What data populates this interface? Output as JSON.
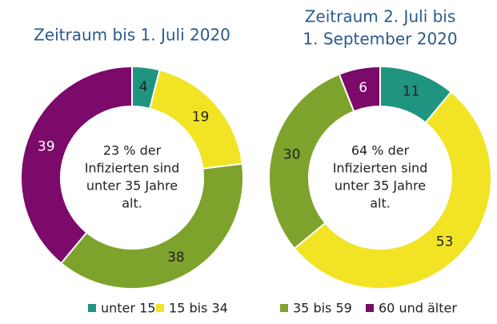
{
  "chart_data": [
    {
      "type": "donut",
      "title": [
        "Zeitraum bis 1. Juli 2020"
      ],
      "values": [
        4,
        19,
        38,
        39
      ],
      "center_text": [
        "23 % der",
        "Infizierten sind",
        "unter 35 Jahre",
        "alt."
      ]
    },
    {
      "type": "donut",
      "title": [
        "Zeitraum 2. Juli bis",
        "1. September 2020"
      ],
      "values": [
        11,
        53,
        30,
        6
      ],
      "center_text": [
        "64 % der",
        "Infizierten sind",
        "unter 35 Jahre",
        "alt."
      ]
    }
  ],
  "legend": {
    "categories": [
      "unter 15",
      "15 bis 34",
      "35 bis 59",
      "60 und älter"
    ],
    "colors": [
      "#1f9480",
      "#f2e425",
      "#7ea32c",
      "#7b0a6a"
    ],
    "label_colors": [
      "#222222",
      "#222222",
      "#222222",
      "#ffffff"
    ]
  }
}
